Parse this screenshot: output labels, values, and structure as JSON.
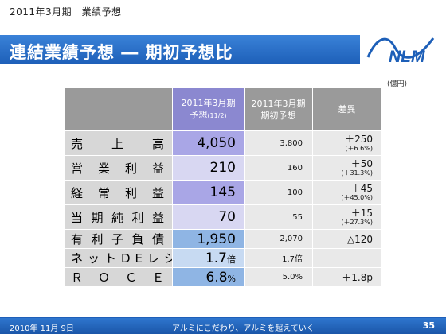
{
  "header": {
    "subtitle": "2011年3月期　業績予想",
    "title": "連結業績予想 ― 期初予想比",
    "logo_text": "NLM"
  },
  "table": {
    "unit": "(億円)",
    "columns": {
      "forecast_line1": "2011年3月期",
      "forecast_line2": "予想",
      "forecast_date": "(11/2)",
      "initial_line1": "2011年3月期",
      "initial_line2": "期初予想",
      "diff": "差異"
    },
    "rows": [
      {
        "label_chars": [
          "売",
          "上",
          "高"
        ],
        "forecast": "4,050",
        "forecast_unit": "",
        "initial": "3,800",
        "diff": "＋250",
        "diff_pct": "(＋6.6%)"
      },
      {
        "label_chars": [
          "営",
          "業",
          "利",
          "益"
        ],
        "forecast": "210",
        "forecast_unit": "",
        "initial": "160",
        "diff": "＋50",
        "diff_pct": "(＋31.3%)"
      },
      {
        "label_chars": [
          "経",
          "常",
          "利",
          "益"
        ],
        "forecast": "145",
        "forecast_unit": "",
        "initial": "100",
        "diff": "＋45",
        "diff_pct": "(＋45.0%)"
      },
      {
        "label_chars": [
          "当",
          "期",
          "純",
          "利",
          "益"
        ],
        "forecast": "70",
        "forecast_unit": "",
        "initial": "55",
        "diff": "＋15",
        "diff_pct": "(＋27.3%)"
      },
      {
        "label_chars": [
          "有",
          "利",
          "子",
          "負",
          "債"
        ],
        "forecast": "1,950",
        "forecast_unit": "",
        "initial": "2,070",
        "diff": "△120",
        "diff_pct": ""
      },
      {
        "label": "ネットDEレシオ",
        "forecast": "1.7",
        "forecast_unit": "倍",
        "initial": "1.7倍",
        "diff": "－",
        "diff_pct": ""
      },
      {
        "label_chars": [
          "Ｒ",
          "Ｏ",
          "Ｃ",
          "Ｅ"
        ],
        "forecast": "6.8",
        "forecast_unit": "%",
        "initial": "5.0%",
        "diff": "＋1.8p",
        "diff_pct": ""
      }
    ]
  },
  "footer": {
    "date": "2010年 11月 9日",
    "slogan": "アルミにこだわり、アルミを超えていく",
    "page": "35"
  },
  "colors": {
    "title_bar": "#1d5fb8",
    "forecast_strong": "#a9a6e6",
    "forecast_light": "#d8d7f2",
    "forecast_blue": "#8fb5e4",
    "footer": "#1b56a8"
  },
  "icons": {
    "logo": "nlm-logo-icon"
  }
}
